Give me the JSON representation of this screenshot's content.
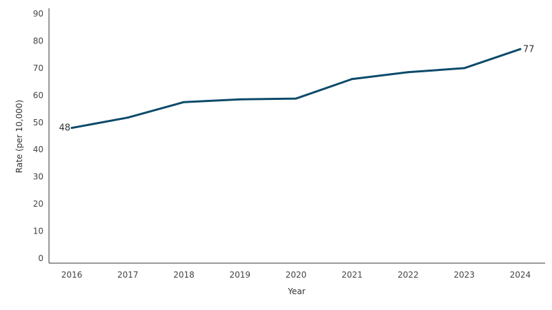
{
  "chart_data": {
    "type": "line",
    "title": "",
    "xlabel": "Year",
    "ylabel": "Rate (per 10,000)",
    "categories": [
      "2016",
      "2017",
      "2018",
      "2019",
      "2020",
      "2021",
      "2022",
      "2023",
      "2024"
    ],
    "series": [
      {
        "values": [
          48,
          51.8,
          57.5,
          58.5,
          58.8,
          66,
          68.5,
          70,
          77
        ],
        "color": "#0b4a6a"
      }
    ],
    "data_labels": [
      {
        "index": 0,
        "text": "48"
      },
      {
        "index": 8,
        "text": "77"
      }
    ],
    "yticks": [
      0,
      10,
      20,
      30,
      40,
      50,
      60,
      70,
      80,
      90
    ],
    "ylim": [
      0,
      90
    ],
    "grid": false,
    "legend": "none"
  }
}
